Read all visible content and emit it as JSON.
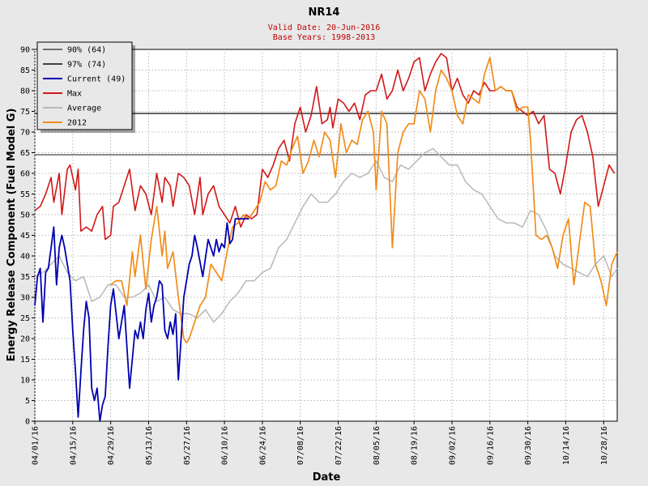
{
  "chart_data": {
    "type": "line",
    "title": "NR14",
    "subtitle_lines": [
      "Valid Date: 20-Jun-2016",
      "Base Years: 1998-2013"
    ],
    "xlabel": "Date",
    "ylabel": "Energy Release Component (Fuel Model G)",
    "x_start": "2016-04-01",
    "x_end": "2016-11-02",
    "x_ticks": [
      "04/01/16",
      "04/15/16",
      "04/29/16",
      "05/13/16",
      "05/27/16",
      "06/10/16",
      "06/24/16",
      "07/08/16",
      "07/22/16",
      "08/05/16",
      "08/19/16",
      "09/02/16",
      "09/16/16",
      "09/30/16",
      "10/14/16",
      "10/28/16"
    ],
    "ylim": [
      0,
      90
    ],
    "y_ticks": [
      0,
      5,
      10,
      15,
      20,
      25,
      30,
      35,
      40,
      45,
      50,
      55,
      60,
      65,
      70,
      75,
      80,
      85,
      90
    ],
    "grid": true,
    "legend_position": "top-left",
    "colors": {
      "p90": "#707070",
      "p97": "#404040",
      "current": "#0000b0",
      "max": "#d01818",
      "average": "#b8b8b8",
      "y2012": "#f28c1a"
    },
    "thresholds": [
      {
        "name": "90% (64)",
        "value": 64.5
      },
      {
        "name": "97% (74)",
        "value": 74.5
      }
    ],
    "series": [
      {
        "key": "current",
        "name": "Current (49)",
        "x": [
          "2016-04-01",
          "2016-04-02",
          "2016-04-03",
          "2016-04-04",
          "2016-04-05",
          "2016-04-06",
          "2016-04-07",
          "2016-04-08",
          "2016-04-09",
          "2016-04-10",
          "2016-04-11",
          "2016-04-12",
          "2016-04-13",
          "2016-04-14",
          "2016-04-15",
          "2016-04-16",
          "2016-04-17",
          "2016-04-18",
          "2016-04-19",
          "2016-04-20",
          "2016-04-21",
          "2016-04-22",
          "2016-04-23",
          "2016-04-24",
          "2016-04-25",
          "2016-04-26",
          "2016-04-27",
          "2016-04-28",
          "2016-04-29",
          "2016-04-30",
          "2016-05-02",
          "2016-05-04",
          "2016-05-06",
          "2016-05-08",
          "2016-05-09",
          "2016-05-10",
          "2016-05-11",
          "2016-05-12",
          "2016-05-13",
          "2016-05-14",
          "2016-05-15",
          "2016-05-16",
          "2016-05-17",
          "2016-05-18",
          "2016-05-19",
          "2016-05-20",
          "2016-05-21",
          "2016-05-22",
          "2016-05-23",
          "2016-05-24",
          "2016-05-25",
          "2016-05-26",
          "2016-05-27",
          "2016-05-28",
          "2016-05-29",
          "2016-05-30",
          "2016-05-31",
          "2016-06-02",
          "2016-06-04",
          "2016-06-06",
          "2016-06-07",
          "2016-06-08",
          "2016-06-09",
          "2016-06-10",
          "2016-06-11",
          "2016-06-12",
          "2016-06-13",
          "2016-06-14",
          "2016-06-15",
          "2016-06-16",
          "2016-06-17",
          "2016-06-18",
          "2016-06-19"
        ],
        "values": [
          28,
          35,
          37,
          24,
          36,
          37,
          42,
          47,
          33,
          42,
          45,
          42,
          38,
          34,
          22,
          12,
          1,
          12,
          22,
          29,
          25,
          8,
          5,
          8,
          0,
          4,
          6,
          18,
          28,
          32,
          20,
          28,
          8,
          22,
          20,
          24,
          20,
          27,
          31,
          24,
          28,
          30,
          34,
          33,
          22,
          20,
          24,
          21,
          26,
          10,
          20,
          30,
          34,
          38,
          40,
          45,
          42,
          35,
          44,
          40,
          44,
          41,
          43,
          42,
          48,
          43,
          44,
          49,
          49,
          49,
          49,
          49,
          49
        ]
      },
      {
        "key": "max",
        "name": "Max",
        "x": [
          "2016-04-01",
          "2016-04-03",
          "2016-04-05",
          "2016-04-07",
          "2016-04-08",
          "2016-04-10",
          "2016-04-11",
          "2016-04-13",
          "2016-04-14",
          "2016-04-16",
          "2016-04-17",
          "2016-04-18",
          "2016-04-20",
          "2016-04-22",
          "2016-04-24",
          "2016-04-26",
          "2016-04-27",
          "2016-04-29",
          "2016-04-30",
          "2016-05-02",
          "2016-05-04",
          "2016-05-06",
          "2016-05-08",
          "2016-05-10",
          "2016-05-12",
          "2016-05-14",
          "2016-05-16",
          "2016-05-18",
          "2016-05-19",
          "2016-05-21",
          "2016-05-22",
          "2016-05-24",
          "2016-05-26",
          "2016-05-28",
          "2016-05-30",
          "2016-06-01",
          "2016-06-02",
          "2016-06-04",
          "2016-06-06",
          "2016-06-08",
          "2016-06-10",
          "2016-06-12",
          "2016-06-14",
          "2016-06-16",
          "2016-06-18",
          "2016-06-20",
          "2016-06-22",
          "2016-06-24",
          "2016-06-26",
          "2016-06-28",
          "2016-06-30",
          "2016-07-02",
          "2016-07-04",
          "2016-07-06",
          "2016-07-08",
          "2016-07-10",
          "2016-07-12",
          "2016-07-14",
          "2016-07-16",
          "2016-07-18",
          "2016-07-19",
          "2016-07-20",
          "2016-07-22",
          "2016-07-24",
          "2016-07-26",
          "2016-07-28",
          "2016-07-30",
          "2016-08-01",
          "2016-08-03",
          "2016-08-05",
          "2016-08-07",
          "2016-08-09",
          "2016-08-11",
          "2016-08-13",
          "2016-08-15",
          "2016-08-17",
          "2016-08-19",
          "2016-08-21",
          "2016-08-23",
          "2016-08-25",
          "2016-08-27",
          "2016-08-29",
          "2016-08-31",
          "2016-09-02",
          "2016-09-04",
          "2016-09-06",
          "2016-09-08",
          "2016-09-10",
          "2016-09-12",
          "2016-09-14",
          "2016-09-16",
          "2016-09-18",
          "2016-09-20",
          "2016-09-22",
          "2016-09-24",
          "2016-09-26",
          "2016-09-28",
          "2016-09-30",
          "2016-10-02",
          "2016-10-04",
          "2016-10-06",
          "2016-10-08",
          "2016-10-10",
          "2016-10-12",
          "2016-10-14",
          "2016-10-16",
          "2016-10-18",
          "2016-10-20",
          "2016-10-22",
          "2016-10-24",
          "2016-10-26",
          "2016-10-28",
          "2016-10-30",
          "2016-11-01"
        ],
        "values": [
          51,
          52,
          55,
          59,
          53,
          60,
          50,
          61,
          62,
          56,
          61,
          46,
          47,
          46,
          50,
          52,
          44,
          45,
          52,
          53,
          57,
          61,
          51,
          57,
          55,
          50,
          60,
          53,
          59,
          57,
          52,
          60,
          59,
          57,
          50,
          59,
          50,
          55,
          57,
          52,
          50,
          48,
          52,
          47,
          50,
          49,
          50,
          61,
          59,
          62,
          66,
          68,
          63,
          72,
          76,
          70,
          74,
          81,
          72,
          73,
          76,
          71,
          78,
          77,
          75,
          77,
          73,
          79,
          80,
          80,
          84,
          78,
          80,
          85,
          80,
          83,
          87,
          88,
          80,
          84,
          87,
          89,
          88,
          80,
          83,
          79,
          77,
          80,
          79,
          82,
          80,
          80,
          81,
          80,
          80,
          76,
          75,
          74,
          75,
          72,
          74,
          61,
          60,
          55,
          62,
          70,
          73,
          74,
          70,
          64,
          52,
          57,
          62,
          60
        ]
      },
      {
        "key": "average",
        "name": "Average",
        "x": [
          "2016-04-01",
          "2016-04-04",
          "2016-04-07",
          "2016-04-10",
          "2016-04-13",
          "2016-04-16",
          "2016-04-19",
          "2016-04-22",
          "2016-04-25",
          "2016-04-28",
          "2016-05-01",
          "2016-05-04",
          "2016-05-07",
          "2016-05-10",
          "2016-05-13",
          "2016-05-16",
          "2016-05-19",
          "2016-05-22",
          "2016-05-25",
          "2016-05-28",
          "2016-05-31",
          "2016-06-03",
          "2016-06-06",
          "2016-06-09",
          "2016-06-12",
          "2016-06-15",
          "2016-06-18",
          "2016-06-21",
          "2016-06-24",
          "2016-06-27",
          "2016-06-30",
          "2016-07-03",
          "2016-07-06",
          "2016-07-09",
          "2016-07-12",
          "2016-07-15",
          "2016-07-18",
          "2016-07-21",
          "2016-07-24",
          "2016-07-27",
          "2016-07-30",
          "2016-08-02",
          "2016-08-05",
          "2016-08-08",
          "2016-08-11",
          "2016-08-14",
          "2016-08-17",
          "2016-08-20",
          "2016-08-23",
          "2016-08-26",
          "2016-08-29",
          "2016-09-01",
          "2016-09-04",
          "2016-09-07",
          "2016-09-10",
          "2016-09-13",
          "2016-09-16",
          "2016-09-19",
          "2016-09-22",
          "2016-09-25",
          "2016-09-28",
          "2016-10-01",
          "2016-10-04",
          "2016-10-07",
          "2016-10-10",
          "2016-10-13",
          "2016-10-16",
          "2016-10-19",
          "2016-10-22",
          "2016-10-25",
          "2016-10-28",
          "2016-10-31",
          "2016-11-02"
        ],
        "values": [
          35,
          36,
          38,
          40,
          36,
          34,
          35,
          29,
          30,
          33,
          33,
          30,
          30,
          31,
          33,
          29,
          30,
          27,
          26,
          26,
          25,
          27,
          24,
          26,
          29,
          31,
          34,
          34,
          36,
          37,
          42,
          44,
          48,
          52,
          55,
          53,
          53,
          55,
          58,
          60,
          59,
          60,
          63,
          59,
          58,
          62,
          61,
          63,
          65,
          66,
          64,
          62,
          62,
          58,
          56,
          55,
          52,
          49,
          48,
          48,
          47,
          51,
          50,
          46,
          40,
          38,
          37,
          36,
          35,
          38,
          40,
          35,
          37
        ]
      },
      {
        "key": "y2012",
        "name": "2012",
        "x": [
          "2016-04-29",
          "2016-05-01",
          "2016-05-03",
          "2016-05-05",
          "2016-05-07",
          "2016-05-08",
          "2016-05-10",
          "2016-05-12",
          "2016-05-14",
          "2016-05-16",
          "2016-05-18",
          "2016-05-19",
          "2016-05-20",
          "2016-05-22",
          "2016-05-24",
          "2016-05-26",
          "2016-05-27",
          "2016-05-28",
          "2016-05-30",
          "2016-06-01",
          "2016-06-03",
          "2016-06-05",
          "2016-06-07",
          "2016-06-09",
          "2016-06-11",
          "2016-06-13",
          "2016-06-15",
          "2016-06-17",
          "2016-06-19",
          "2016-06-21",
          "2016-06-23",
          "2016-06-25",
          "2016-06-27",
          "2016-06-29",
          "2016-07-01",
          "2016-07-03",
          "2016-07-05",
          "2016-07-07",
          "2016-07-09",
          "2016-07-11",
          "2016-07-13",
          "2016-07-15",
          "2016-07-17",
          "2016-07-19",
          "2016-07-21",
          "2016-07-23",
          "2016-07-25",
          "2016-07-27",
          "2016-07-29",
          "2016-07-31",
          "2016-08-02",
          "2016-08-04",
          "2016-08-05",
          "2016-08-07",
          "2016-08-09",
          "2016-08-11",
          "2016-08-13",
          "2016-08-15",
          "2016-08-17",
          "2016-08-19",
          "2016-08-21",
          "2016-08-23",
          "2016-08-25",
          "2016-08-27",
          "2016-08-29",
          "2016-08-31",
          "2016-09-02",
          "2016-09-04",
          "2016-09-06",
          "2016-09-08",
          "2016-09-10",
          "2016-09-12",
          "2016-09-14",
          "2016-09-16",
          "2016-09-18",
          "2016-09-20",
          "2016-09-22",
          "2016-09-24",
          "2016-09-26",
          "2016-09-28",
          "2016-09-30",
          "2016-10-01",
          "2016-10-03",
          "2016-10-05",
          "2016-10-07",
          "2016-10-09",
          "2016-10-11",
          "2016-10-13",
          "2016-10-15",
          "2016-10-17",
          "2016-10-19",
          "2016-10-21",
          "2016-10-23",
          "2016-10-25",
          "2016-10-27",
          "2016-10-29",
          "2016-10-31",
          "2016-11-02"
        ],
        "values": [
          33,
          34,
          34,
          28,
          41,
          35,
          45,
          32,
          44,
          52,
          40,
          46,
          37,
          41,
          30,
          20,
          19,
          20,
          24,
          28,
          30,
          38,
          36,
          34,
          41,
          47,
          48,
          50,
          49,
          51,
          53,
          58,
          56,
          57,
          63,
          62,
          66,
          69,
          60,
          63,
          68,
          64,
          70,
          68,
          59,
          72,
          65,
          68,
          67,
          73,
          75,
          70,
          56,
          75,
          72,
          42,
          65,
          70,
          72,
          72,
          80,
          78,
          70,
          80,
          85,
          83,
          80,
          74,
          72,
          79,
          78,
          77,
          84,
          88,
          80,
          81,
          80,
          80,
          75,
          76,
          76,
          68,
          45,
          44,
          45,
          42,
          37,
          45,
          49,
          33,
          43,
          53,
          52,
          38,
          34,
          28,
          38,
          41
        ]
      }
    ]
  }
}
